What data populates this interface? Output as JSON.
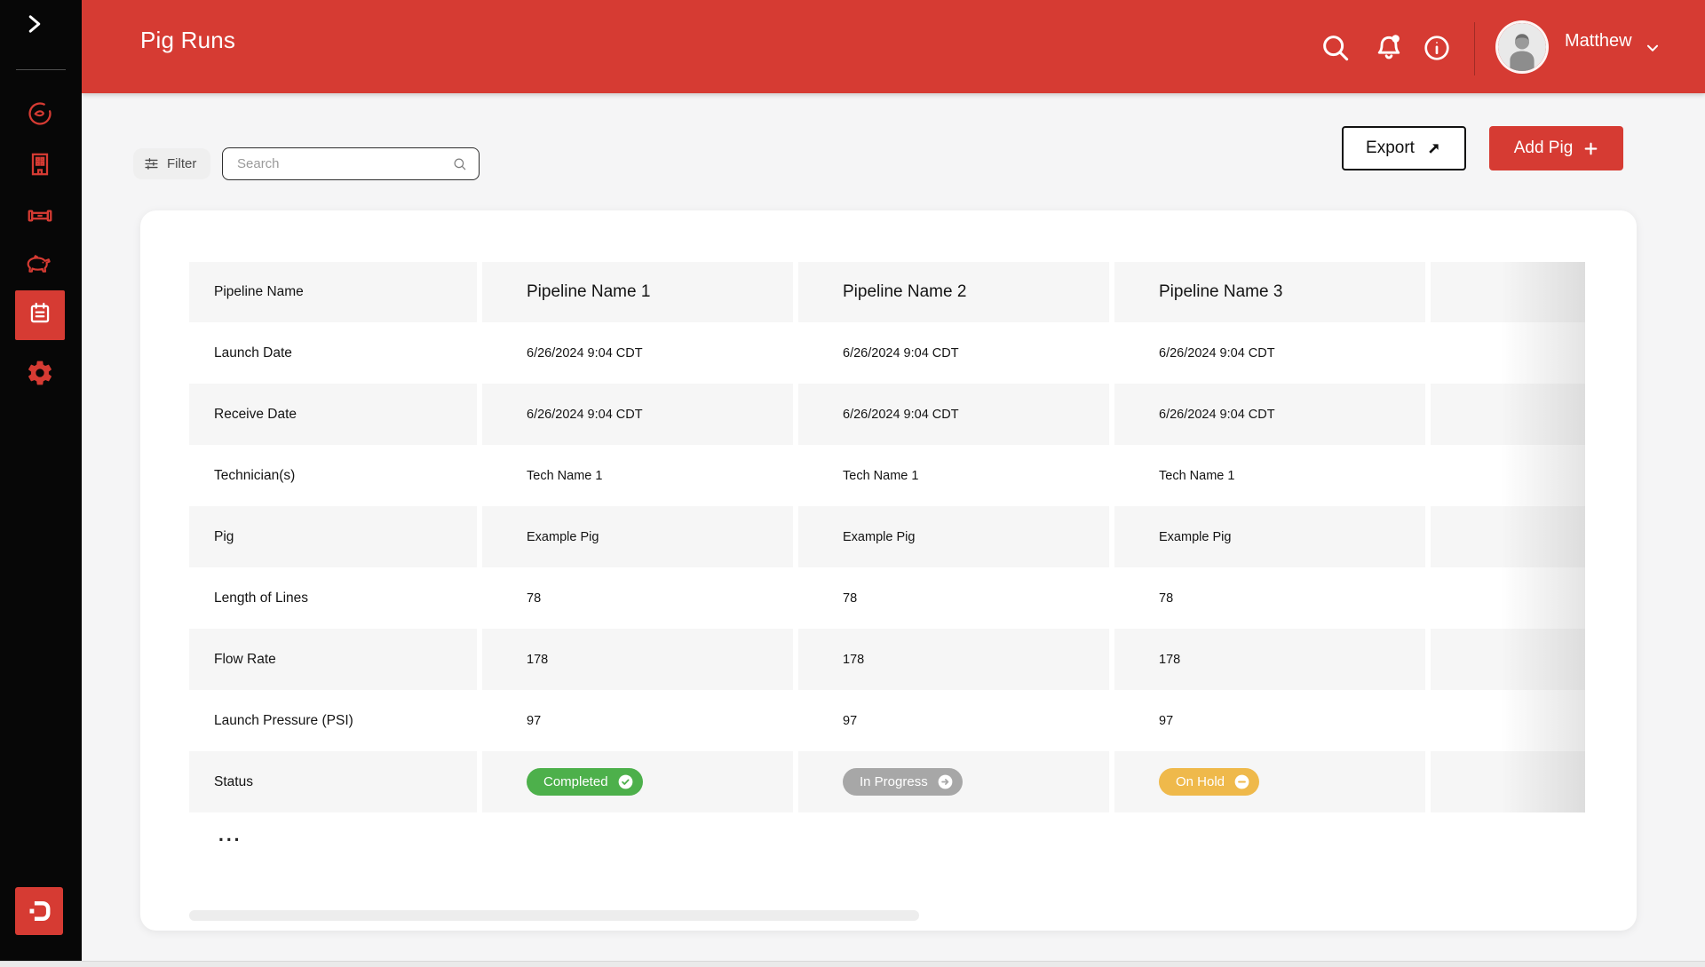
{
  "colors": {
    "accent_red": "#d63b33",
    "sidebar_black": "#070707",
    "status_completed": "#4db04b",
    "status_in_progress": "#a7a7a7",
    "status_on_hold": "#efb94b"
  },
  "sidebar": {
    "collapse_icon": "chevron-right-icon",
    "items": [
      {
        "id": "dashboard",
        "icon": "gauge-icon",
        "active": false
      },
      {
        "id": "facilities",
        "icon": "building-icon",
        "active": false
      },
      {
        "id": "pipelines",
        "icon": "pipe-icon",
        "active": false
      },
      {
        "id": "pigs",
        "icon": "pig-icon",
        "active": false
      },
      {
        "id": "pig-runs",
        "icon": "clipboard-icon",
        "active": true
      },
      {
        "id": "settings",
        "icon": "gear-icon",
        "active": false
      }
    ],
    "logo_icon": "brand-logo"
  },
  "header": {
    "title": "Pig Runs",
    "icons": [
      "search-icon",
      "notifications-icon",
      "info-icon"
    ],
    "notification_dot": true,
    "user": {
      "name": "Matthew",
      "menu_icon": "chevron-down-icon"
    }
  },
  "toolbar": {
    "filter_label": "Filter",
    "search_placeholder": "Search",
    "export_label": "Export",
    "add_pig_label": "Add Pig"
  },
  "table": {
    "field_rows": [
      {
        "label": "Pipeline Name",
        "type": "header",
        "values": [
          "Pipeline Name 1",
          "Pipeline Name 2",
          "Pipeline Name 3",
          ""
        ]
      },
      {
        "label": "Launch Date",
        "values": [
          "6/26/2024 9:04 CDT",
          "6/26/2024 9:04 CDT",
          "6/26/2024 9:04 CDT",
          ""
        ]
      },
      {
        "label": "Receive Date",
        "values": [
          "6/26/2024 9:04 CDT",
          "6/26/2024 9:04 CDT",
          "6/26/2024 9:04 CDT",
          ""
        ]
      },
      {
        "label": "Technician(s)",
        "values": [
          "Tech Name 1",
          "Tech Name 1",
          "Tech Name 1",
          ""
        ]
      },
      {
        "label": "Pig",
        "values": [
          "Example Pig",
          "Example Pig",
          "Example Pig",
          ""
        ]
      },
      {
        "label": "Length of Lines",
        "values": [
          "78",
          "78",
          "78",
          ""
        ]
      },
      {
        "label": "Flow Rate",
        "values": [
          "178",
          "178",
          "178",
          ""
        ]
      },
      {
        "label": "Launch Pressure (PSI)",
        "values": [
          "97",
          "97",
          "97",
          ""
        ]
      },
      {
        "label": "Status",
        "type": "status",
        "values": [
          {
            "label": "Completed",
            "color": "#4db04b",
            "icon": "check-circle-icon"
          },
          {
            "label": "In Progress",
            "color": "#a7a7a7",
            "icon": "arrow-right-circle-icon"
          },
          {
            "label": "On Hold",
            "color": "#efb94b",
            "icon": "minus-circle-icon"
          },
          null
        ]
      }
    ],
    "more_indicator": "..."
  }
}
